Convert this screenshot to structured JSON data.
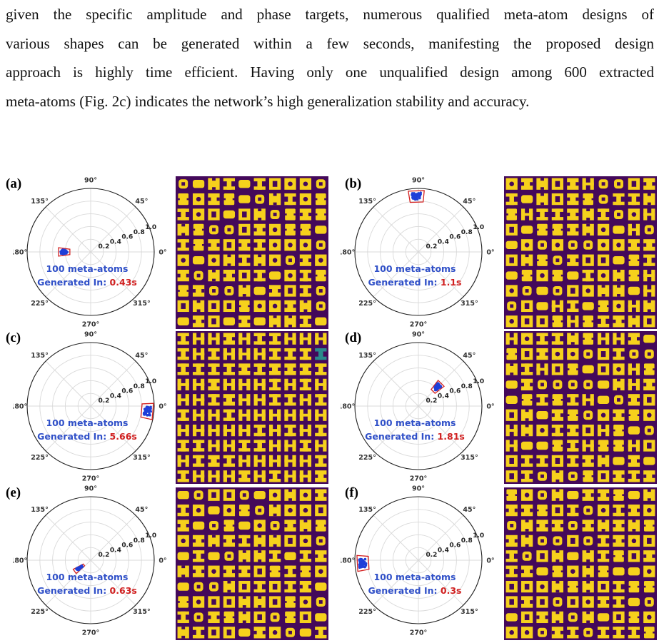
{
  "paragraph": {
    "lines": [
      "given the specific amplitude and phase targets, numerous qualified meta-atom designs of",
      "various shapes can be generated within a few seconds, manifesting the proposed design",
      "approach is highly time efficient. Having only one unqualified design among 600 extracted",
      "meta-atoms (Fig. 2c) indicates the network’s high generalization stability and accuracy."
    ]
  },
  "polar_axis": {
    "angle_labels": [
      "90°",
      "45°",
      "0°",
      "315°",
      "270°",
      "225°",
      "180°",
      "135°"
    ],
    "radial_labels": [
      "0.2",
      "0.4",
      "0.6",
      "0.8",
      "1.0"
    ]
  },
  "colors": {
    "points": "#1f3fd8",
    "region": "#d32020",
    "count_text": "#3050c8",
    "time_text": "#d02020",
    "atom_bg": "#44095a",
    "atom_fg": "#f6d11c",
    "atom_teal": "#2a8a8c"
  },
  "panels": [
    {
      "label": "(a)",
      "count_text": "100 meta-atoms",
      "gen_prefix": "Generated In: ",
      "time": "0.43s",
      "amp": 0.42,
      "phase_deg": 180
    },
    {
      "label": "(b)",
      "count_text": "100 meta-atoms",
      "gen_prefix": "Generated In: ",
      "time": "1.1s",
      "amp": 0.88,
      "phase_deg": 92
    },
    {
      "label": "(c)",
      "count_text": "100 meta-atoms",
      "gen_prefix": "Generated In: ",
      "time": "5.66s",
      "amp": 0.9,
      "phase_deg": 355
    },
    {
      "label": "(d)",
      "count_text": "100 meta-atoms",
      "gen_prefix": "Generated In: ",
      "time": "1.81s",
      "amp": 0.42,
      "phase_deg": 45
    },
    {
      "label": "(e)",
      "count_text": "100 meta-atoms",
      "gen_prefix": "Generated In: ",
      "time": "0.63s",
      "amp": 0.22,
      "phase_deg": 215
    },
    {
      "label": "(f)",
      "count_text": "100 meta-atoms",
      "gen_prefix": "Generated In: ",
      "time": "0.3s",
      "amp": 0.88,
      "phase_deg": 183
    }
  ]
}
